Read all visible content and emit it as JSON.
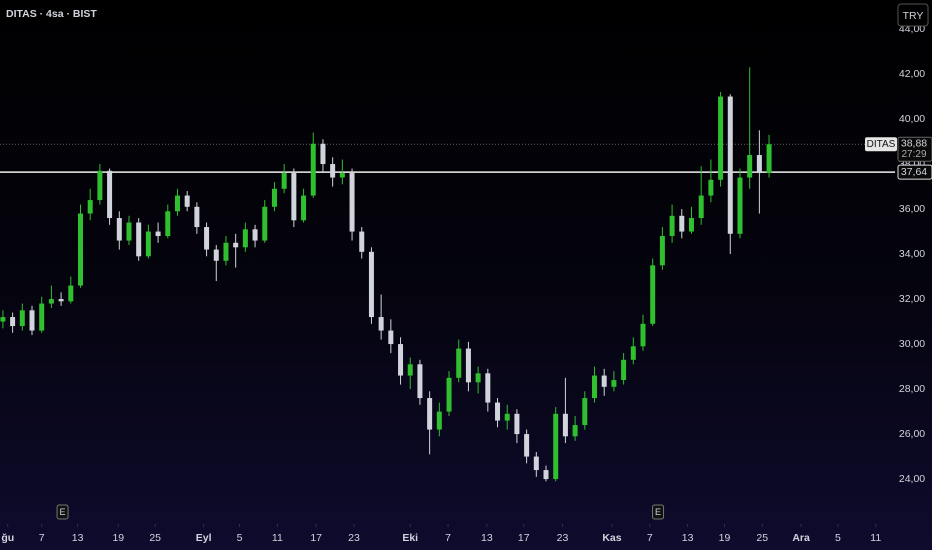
{
  "chart_data": {
    "type": "candlestick",
    "title": "DITAS · 4sa · BIST",
    "currency": "TRY",
    "symbol": "DITAS",
    "last_price": {
      "value": 38.88,
      "label": "38,88"
    },
    "countdown": "27:29",
    "hline": {
      "value": 37.64,
      "label": "37,64"
    },
    "up_color": "#2fbf2f",
    "down_color": "#d1d4dc",
    "ylim": [
      23.07,
      45.29
    ],
    "yticks": [
      {
        "value": 24,
        "label": "24,00"
      },
      {
        "value": 26,
        "label": "26,00"
      },
      {
        "value": 28,
        "label": "28,00"
      },
      {
        "value": 30,
        "label": "30,00"
      },
      {
        "value": 32,
        "label": "32,00"
      },
      {
        "value": 34,
        "label": "34,00"
      },
      {
        "value": 36,
        "label": "36,00"
      },
      {
        "value": 38,
        "label": "38,00"
      },
      {
        "value": 40,
        "label": "40,00"
      },
      {
        "value": 42,
        "label": "42,00"
      },
      {
        "value": 44,
        "label": "44,00"
      }
    ],
    "xlim": [
      -0.3,
      95.8
    ],
    "xticks": [
      {
        "value": 0.5,
        "label": "ğu"
      },
      {
        "value": 4.0,
        "label": "7"
      },
      {
        "value": 7.7,
        "label": "13"
      },
      {
        "value": 11.9,
        "label": "19"
      },
      {
        "value": 15.7,
        "label": "25"
      },
      {
        "value": 20.7,
        "label": "Eyl"
      },
      {
        "value": 24.4,
        "label": "5"
      },
      {
        "value": 28.3,
        "label": "11"
      },
      {
        "value": 32.3,
        "label": "17"
      },
      {
        "value": 36.2,
        "label": "23"
      },
      {
        "value": 42.0,
        "label": "Eki"
      },
      {
        "value": 45.9,
        "label": "7"
      },
      {
        "value": 49.9,
        "label": "13"
      },
      {
        "value": 53.7,
        "label": "17"
      },
      {
        "value": 57.7,
        "label": "23"
      },
      {
        "value": 62.8,
        "label": "Kas"
      },
      {
        "value": 66.7,
        "label": "7"
      },
      {
        "value": 70.6,
        "label": "13"
      },
      {
        "value": 74.4,
        "label": "19"
      },
      {
        "value": 78.3,
        "label": "25"
      },
      {
        "value": 82.3,
        "label": "Ara"
      },
      {
        "value": 86.1,
        "label": "5"
      },
      {
        "value": 90.0,
        "label": "11"
      }
    ],
    "events": [
      {
        "value": 6.1,
        "label": "E"
      },
      {
        "value": 67.5,
        "label": "E"
      }
    ],
    "open": [
      31.0,
      31.2,
      30.8,
      31.5,
      30.6,
      31.8,
      32.0,
      31.9,
      32.6,
      35.8,
      36.4,
      37.7,
      35.6,
      34.6,
      35.4,
      33.9,
      35.0,
      34.8,
      35.9,
      36.6,
      36.1,
      35.2,
      34.2,
      33.7,
      34.5,
      34.3,
      35.1,
      34.6,
      36.1,
      36.9,
      37.6,
      35.5,
      36.6,
      38.9,
      38.0,
      37.4,
      37.6,
      35.0,
      34.1,
      31.2,
      30.6,
      30.0,
      28.6,
      29.1,
      27.6,
      26.2,
      27.0,
      28.5,
      29.8,
      28.3,
      28.7,
      27.4,
      26.6,
      26.9,
      26.0,
      25.0,
      24.4,
      24.0,
      26.9,
      25.9,
      26.4,
      27.6,
      28.6,
      28.1,
      28.4,
      29.3,
      29.9,
      30.9,
      33.5,
      34.8,
      35.7,
      35.0,
      35.6,
      36.6,
      37.3,
      41.0,
      34.9,
      37.4,
      38.4,
      37.6
    ],
    "high": [
      31.5,
      31.4,
      31.8,
      31.7,
      32.1,
      32.6,
      32.3,
      33.0,
      36.2,
      36.9,
      38.0,
      37.8,
      35.9,
      35.7,
      35.6,
      35.3,
      35.4,
      36.2,
      36.9,
      36.8,
      36.3,
      35.4,
      34.4,
      34.8,
      34.9,
      35.4,
      35.3,
      36.4,
      37.2,
      38.0,
      37.8,
      36.9,
      39.4,
      39.1,
      38.3,
      38.2,
      37.8,
      35.2,
      34.3,
      32.2,
      31.1,
      30.3,
      29.4,
      29.3,
      27.9,
      27.4,
      28.8,
      30.2,
      30.1,
      29.0,
      28.9,
      27.6,
      27.3,
      27.1,
      26.2,
      25.2,
      24.6,
      27.2,
      28.5,
      26.8,
      27.9,
      29.0,
      28.9,
      28.8,
      29.6,
      30.3,
      31.3,
      33.8,
      35.2,
      36.2,
      36.0,
      36.1,
      37.9,
      38.2,
      41.2,
      41.1,
      37.8,
      42.3,
      39.5,
      39.3
    ],
    "low": [
      30.7,
      30.5,
      30.6,
      30.4,
      30.5,
      31.6,
      31.7,
      31.8,
      32.5,
      35.5,
      36.2,
      35.3,
      34.2,
      34.4,
      33.7,
      33.8,
      34.5,
      34.7,
      35.7,
      35.9,
      34.9,
      33.9,
      32.8,
      33.5,
      33.4,
      34.1,
      34.3,
      34.5,
      35.9,
      36.7,
      35.2,
      35.4,
      36.5,
      37.6,
      37.0,
      37.1,
      34.6,
      33.8,
      30.9,
      30.2,
      29.6,
      28.2,
      28.0,
      27.3,
      25.1,
      25.9,
      26.8,
      28.3,
      27.9,
      27.8,
      27.0,
      26.3,
      26.2,
      25.6,
      24.7,
      24.1,
      23.9,
      23.9,
      25.6,
      25.7,
      26.2,
      27.4,
      27.7,
      27.9,
      28.2,
      29.1,
      29.7,
      30.8,
      33.3,
      34.5,
      34.7,
      34.9,
      35.3,
      36.3,
      37.0,
      34.0,
      34.7,
      36.9,
      35.8,
      37.4
    ],
    "close": [
      31.2,
      30.8,
      31.5,
      30.6,
      31.8,
      32.0,
      31.9,
      32.6,
      35.8,
      36.4,
      37.7,
      35.6,
      34.6,
      35.4,
      33.9,
      35.0,
      34.8,
      35.9,
      36.6,
      36.1,
      35.2,
      34.2,
      33.7,
      34.5,
      34.3,
      35.1,
      34.6,
      36.1,
      36.9,
      37.6,
      35.5,
      36.6,
      38.9,
      38.0,
      37.4,
      37.6,
      35.0,
      34.1,
      31.2,
      30.6,
      30.0,
      28.6,
      29.1,
      27.6,
      26.2,
      27.0,
      28.5,
      29.8,
      28.3,
      28.7,
      27.4,
      26.6,
      26.9,
      26.0,
      25.0,
      24.4,
      24.0,
      26.9,
      25.9,
      26.4,
      27.6,
      28.6,
      28.1,
      28.4,
      29.3,
      29.9,
      30.9,
      33.5,
      34.8,
      35.7,
      35.0,
      35.6,
      36.6,
      37.3,
      41.0,
      34.9,
      37.4,
      38.4,
      37.6,
      38.88
    ]
  }
}
